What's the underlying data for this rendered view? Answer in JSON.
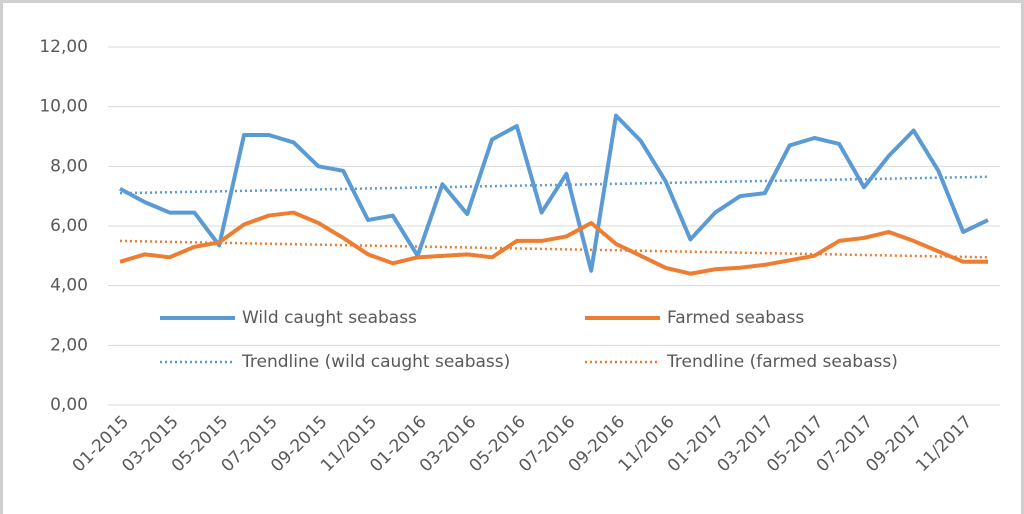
{
  "chart_data": {
    "type": "line",
    "categories": [
      "01-2015",
      null,
      "03-2015",
      null,
      "05-2015",
      null,
      "07-2015",
      null,
      "09-2015",
      null,
      "11/2015",
      null,
      "01-2016",
      null,
      "03-2016",
      null,
      "05-2016",
      null,
      "07-2016",
      null,
      "09-2016",
      null,
      "11/2016",
      null,
      "01-2017",
      null,
      "03-2017",
      null,
      "05-2017",
      null,
      "07-2017",
      null,
      "09-2017",
      null,
      "11/2017",
      null
    ],
    "series": [
      {
        "name": "Wild caught seabass",
        "color": "#5b9bd5",
        "values": [
          7.25,
          6.8,
          6.45,
          6.45,
          5.35,
          9.05,
          9.05,
          8.8,
          8.0,
          7.85,
          6.2,
          6.35,
          5.0,
          7.4,
          6.4,
          8.9,
          9.35,
          6.45,
          7.75,
          4.5,
          9.7,
          8.85,
          7.5,
          5.55,
          6.45,
          7.0,
          7.1,
          8.7,
          8.95,
          8.75,
          7.3,
          8.35,
          9.2,
          7.85,
          5.8,
          6.2
        ]
      },
      {
        "name": "Farmed seabass",
        "color": "#ed7d31",
        "values": [
          4.8,
          5.05,
          4.95,
          5.3,
          5.45,
          6.05,
          6.35,
          6.45,
          6.1,
          5.6,
          5.05,
          4.75,
          4.95,
          5.0,
          5.05,
          4.95,
          5.5,
          5.5,
          5.65,
          6.1,
          5.4,
          5.0,
          4.6,
          4.4,
          4.55,
          4.6,
          4.7,
          4.85,
          5.0,
          5.5,
          5.6,
          5.8,
          5.5,
          5.15,
          4.8,
          4.8
        ]
      }
    ],
    "trendlines": [
      {
        "name": "Trendline (wild caught seabass)",
        "color": "#5b9bd5",
        "values": [
          7.1,
          7.65
        ]
      },
      {
        "name": "Trendline (farmed seabass)",
        "color": "#ed7d31",
        "values": [
          5.5,
          4.95
        ]
      }
    ],
    "ylim": [
      0,
      12
    ],
    "yticks": [
      {
        "value": 0,
        "label": "0,00"
      },
      {
        "value": 2,
        "label": "2,00"
      },
      {
        "value": 4,
        "label": "4,00"
      },
      {
        "value": 6,
        "label": "6,00"
      },
      {
        "value": 8,
        "label": "8,00"
      },
      {
        "value": 10,
        "label": "10,00"
      },
      {
        "value": 12,
        "label": "12,00"
      }
    ],
    "grid": true
  }
}
